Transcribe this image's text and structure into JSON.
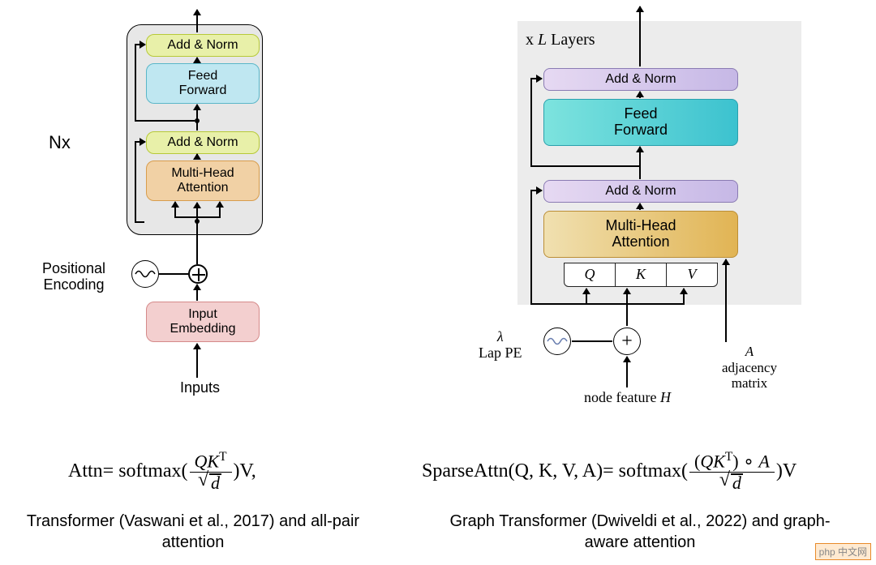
{
  "left": {
    "nx_label": "Nx",
    "blocks": {
      "add_norm_1": {
        "label": "Add & Norm",
        "bg": "#e8f0a9",
        "border": "#b7c938"
      },
      "feed_forward": {
        "label": "Feed\nForward",
        "bg": "#bfe7f1",
        "border": "#5ab6c8"
      },
      "add_norm_2": {
        "label": "Add & Norm",
        "bg": "#e8f0a9",
        "border": "#b7c938"
      },
      "mha": {
        "label": "Multi-Head\nAttention",
        "bg": "#f1d1a5",
        "border": "#d89d4d"
      },
      "embedding": {
        "label": "Input\nEmbedding",
        "bg": "#f3cfcf",
        "border": "#d58a8a"
      }
    },
    "pos_enc_label": "Positional\nEncoding",
    "inputs_label": "Inputs"
  },
  "right": {
    "layers_label_prefix": "x ",
    "layers_label_L": "L",
    "layers_label_suffix": " Layers",
    "blocks": {
      "add_norm_1": {
        "label": "Add & Norm",
        "grad_from": "#e6d9f2",
        "grad_to": "#c6b8e6",
        "border": "#8a7bb3"
      },
      "feed_forward": {
        "label": "Feed\nForward",
        "grad_from": "#7de3de",
        "grad_to": "#3cc2cf",
        "border": "#2aa0ad"
      },
      "add_norm_2": {
        "label": "Add & Norm",
        "grad_from": "#e6d9f2",
        "grad_to": "#c6b8e6",
        "border": "#8a7bb3"
      },
      "mha": {
        "label": "Multi-Head\nAttention",
        "grad_from": "#f0e0b0",
        "grad_to": "#e1b454",
        "border": "#bb8e36"
      }
    },
    "qkv": [
      "Q",
      "K",
      "V"
    ],
    "lap_lambda": "λ",
    "lap_label": "Lap PE",
    "plus_glyph": "+",
    "node_feature_prefix": "node feature ",
    "node_feature_H": "H",
    "adj_A": "A",
    "adj_label": "adjacency\nmatrix"
  },
  "equations": {
    "left": {
      "lhs": "Attn",
      "eq": " = softmax(",
      "num": "QKᵀ",
      "den_d": "d",
      "close": ")V,"
    },
    "right": {
      "lhs": "SparseAttn(Q, K, V, A)",
      "eq": " = softmax(",
      "num": "(QKᵀ) ∘ A",
      "den_d": "d",
      "close": ")V"
    }
  },
  "captions": {
    "left": "Transformer (Vaswani et al., 2017) and all-pair attention",
    "right": "Graph Transformer (Dwiveldi et al., 2022) and graph-aware attention"
  },
  "colors": {
    "bg": "#ffffff",
    "box_bg": "#e7e7e7",
    "line": "#000000"
  },
  "watermark": "php 中文网"
}
